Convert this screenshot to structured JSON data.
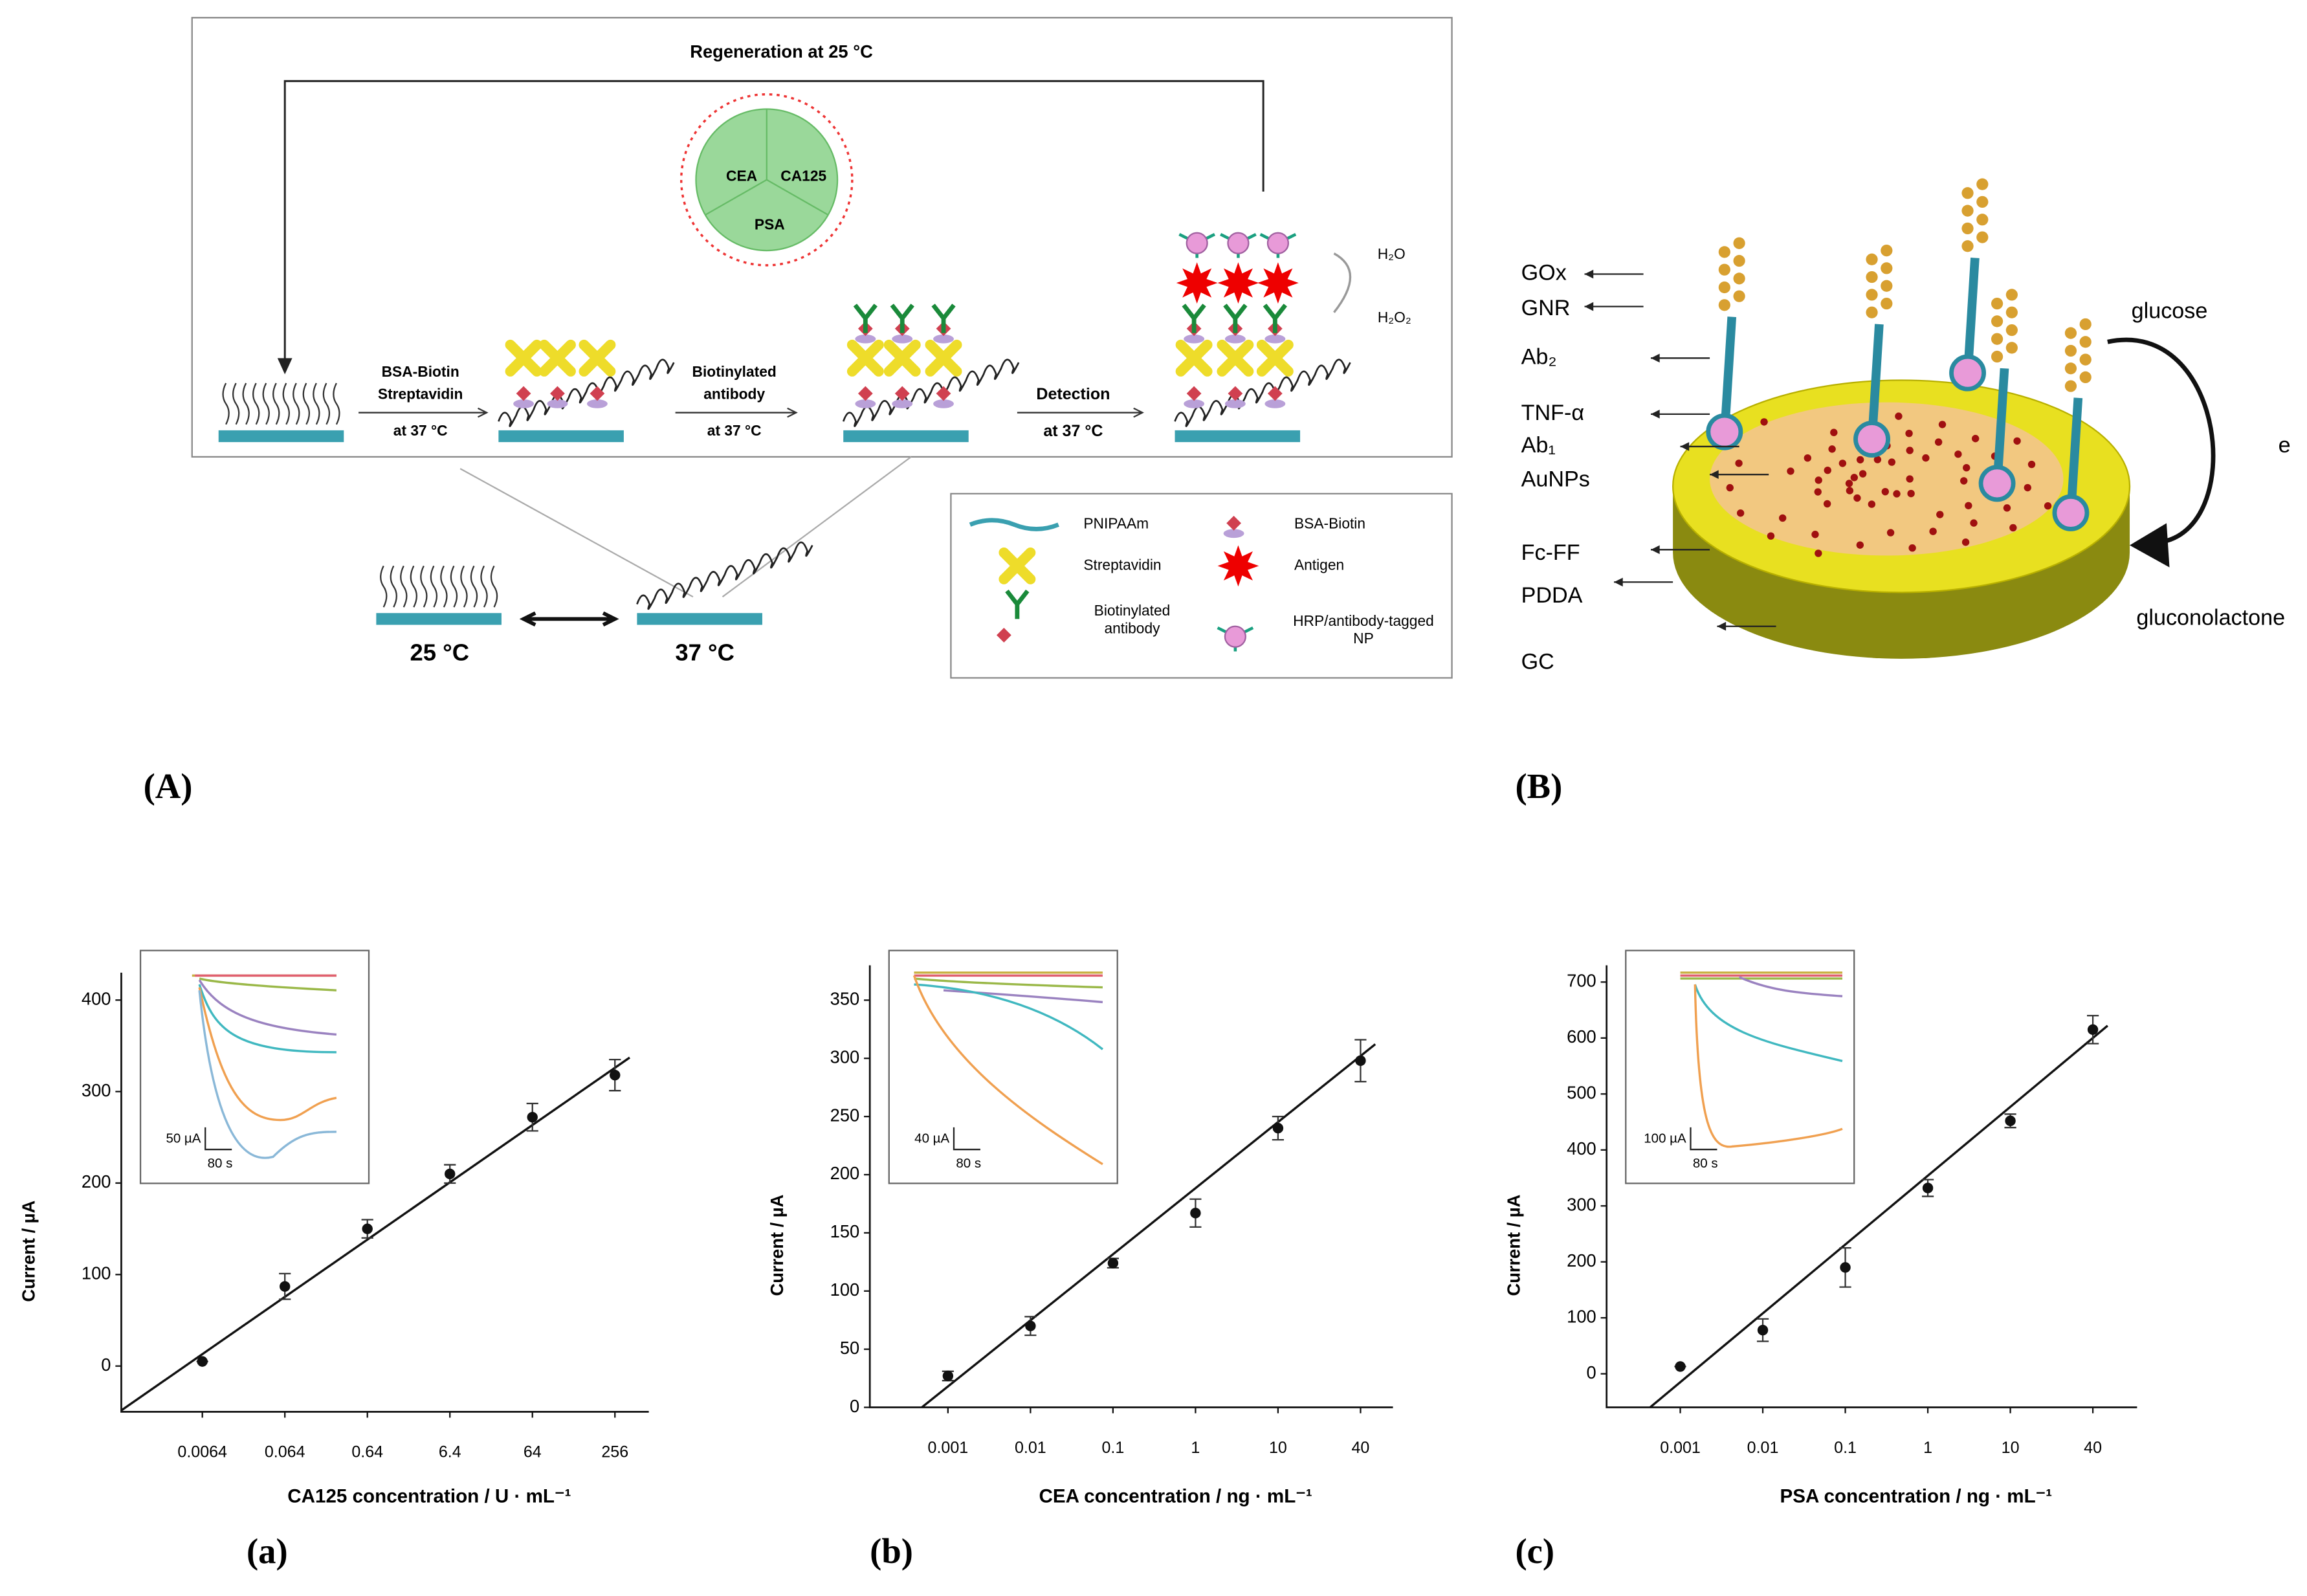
{
  "diagram_a": {
    "regeneration": "Regeneration at 25 °C",
    "cycle": [
      "CEA",
      "CA125",
      "PSA"
    ],
    "step1": [
      "BSA-Biotin",
      "Streptavidin",
      "at 37 °C"
    ],
    "step2": [
      "Biotinylated",
      "antibody",
      "at 37 °C"
    ],
    "step3": [
      "Detection",
      "at 37 °C"
    ],
    "h2o": "H₂O",
    "h2o2": "H₂O₂",
    "temps": [
      "25 °C",
      "37 °C"
    ],
    "legend": [
      "PNIPAAm",
      "BSA-Biotin",
      "Streptavidin",
      "Antigen",
      "Biotinylated antibody",
      "HRP/antibody-tagged NP"
    ],
    "panel": "(A)"
  },
  "diagram_b": {
    "labels": [
      "GOx",
      "GNR",
      "Ab₂",
      "TNF-α",
      "Ab₁",
      "AuNPs",
      "Fc-FF",
      "PDDA",
      "GC"
    ],
    "glucose": "glucose",
    "e": "e",
    "gluconolactone": "gluconolactone",
    "panel": "(B)"
  },
  "chart_data": [
    {
      "type": "scatter",
      "panel": "(a)",
      "ylabel": "Current / µA",
      "xlabel": "CA125 concentration / U · mL⁻¹",
      "categories": [
        "0.0064",
        "0.064",
        "0.64",
        "6.4",
        "64",
        "256"
      ],
      "values": [
        5,
        87,
        150,
        210,
        272,
        318
      ],
      "errors": [
        0,
        14,
        10,
        10,
        15,
        17
      ],
      "fit_line": {
        "values": [
          13,
          326
        ]
      },
      "ylim": [
        -50,
        430
      ],
      "yticks": [
        0,
        100,
        200,
        300,
        400
      ],
      "color": "#111",
      "inset": {
        "scale_y": "50 µA",
        "scale_x": "80 s"
      }
    },
    {
      "type": "scatter",
      "panel": "(b)",
      "ylabel": "Current / µA",
      "xlabel": "CEA concentration / ng · mL⁻¹",
      "categories": [
        "0.001",
        "0.01",
        "0.1",
        "1",
        "10",
        "40"
      ],
      "values": [
        27,
        70,
        124,
        167,
        240,
        298
      ],
      "errors": [
        4,
        8,
        4,
        12,
        10,
        18
      ],
      "fit_line": {
        "values": [
          18,
          302
        ]
      },
      "ylim": [
        0,
        380
      ],
      "yticks": [
        0,
        50,
        100,
        150,
        200,
        250,
        300,
        350
      ],
      "color": "#111",
      "inset": {
        "scale_y": "40 µA",
        "scale_x": "80 s"
      }
    },
    {
      "type": "scatter",
      "panel": "(c)",
      "ylabel": "Current / µA",
      "xlabel": "PSA concentration / ng · mL⁻¹",
      "categories": [
        "0.001",
        "0.01",
        "0.1",
        "1",
        "10",
        "40"
      ],
      "values": [
        13,
        78,
        190,
        332,
        452,
        615
      ],
      "errors": [
        0,
        20,
        35,
        15,
        12,
        25
      ],
      "fit_line": {
        "values": [
          -15,
          600
        ]
      },
      "ylim": [
        -60,
        730
      ],
      "yticks": [
        0,
        100,
        200,
        300,
        400,
        500,
        600,
        700
      ],
      "color": "#111",
      "inset": {
        "scale_y": "100 µA",
        "scale_x": "80 s"
      }
    }
  ]
}
